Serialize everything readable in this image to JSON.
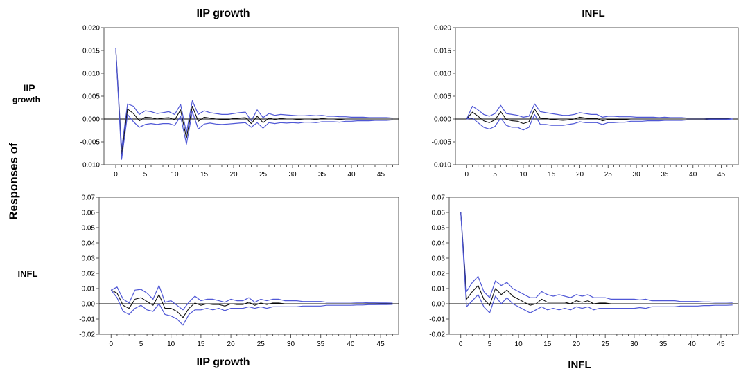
{
  "labels": {
    "col_titles": [
      "IIP growth",
      "INFL"
    ],
    "row_labels": [
      [
        "IIP",
        "growth"
      ],
      [
        "INFL"
      ]
    ],
    "y_title": "Responses of",
    "bottom_labels": [
      "IIP growth",
      "INFL"
    ]
  },
  "colors": {
    "band": "#4f57d6",
    "center": "#111111",
    "zero": "#000000",
    "frame": "#555555"
  },
  "chart_data": [
    {
      "type": "line",
      "row": "IIP growth",
      "column": "IIP growth",
      "ylim": [
        -0.01,
        0.02
      ],
      "yticks": [
        -0.01,
        -0.005,
        0.0,
        0.005,
        0.01,
        0.015,
        0.02
      ],
      "ytick_labels": [
        "-0.010",
        "-0.005",
        "0.000",
        "0.005",
        "0.010",
        "0.015",
        "0.020"
      ],
      "xlim": [
        -2,
        48
      ],
      "xticks": [
        0,
        5,
        10,
        15,
        20,
        25,
        30,
        35,
        40,
        45
      ],
      "ytick_side": "left",
      "x": [
        0,
        1,
        2,
        3,
        4,
        5,
        6,
        7,
        8,
        9,
        10,
        11,
        12,
        13,
        14,
        15,
        16,
        17,
        18,
        19,
        20,
        21,
        22,
        23,
        24,
        25,
        26,
        27,
        28,
        29,
        30,
        31,
        32,
        33,
        34,
        35,
        36,
        37,
        38,
        39,
        40,
        41,
        42,
        43,
        44,
        45,
        46,
        47
      ],
      "series": [
        {
          "role": "upper",
          "values": [
            0.0155,
            -0.0065,
            0.0033,
            0.0028,
            0.001,
            0.0018,
            0.0016,
            0.0012,
            0.0014,
            0.0016,
            0.001,
            0.0032,
            -0.003,
            0.004,
            0.001,
            0.0018,
            0.0014,
            0.0012,
            0.001,
            0.001,
            0.0012,
            0.0014,
            0.0015,
            -0.0004,
            0.002,
            0.0003,
            0.0012,
            0.0008,
            0.001,
            0.0009,
            0.0008,
            0.0007,
            0.0007,
            0.0008,
            0.0007,
            0.0008,
            0.0006,
            0.0006,
            0.0005,
            0.0005,
            0.0004,
            0.0004,
            0.0004,
            0.0003,
            0.0003,
            0.0003,
            0.0003,
            0.0002
          ]
        },
        {
          "role": "response",
          "values": [
            0.0155,
            -0.0078,
            0.0022,
            0.0012,
            -0.0004,
            0.0004,
            0.0003,
            0.0,
            0.0002,
            0.0003,
            -0.0002,
            0.002,
            -0.0042,
            0.0028,
            -0.0005,
            0.0004,
            0.0002,
            0.0,
            -0.0001,
            -0.0001,
            0.0001,
            0.0002,
            0.0003,
            -0.001,
            0.0006,
            -0.0008,
            0.0002,
            -0.0001,
            0.0001,
            0.0,
            0.0,
            -0.0001,
            0.0,
            0.0,
            -0.0001,
            0.0001,
            0.0,
            0.0,
            -0.0001,
            0.0,
            0.0,
            0.0,
            0.0,
            0.0,
            0.0,
            0.0,
            0.0,
            0.0
          ]
        },
        {
          "role": "lower",
          "values": [
            0.0155,
            -0.0088,
            0.001,
            -0.0006,
            -0.0018,
            -0.0012,
            -0.001,
            -0.0012,
            -0.001,
            -0.001,
            -0.0014,
            0.0006,
            -0.0055,
            0.0016,
            -0.0022,
            -0.0011,
            -0.0009,
            -0.0011,
            -0.0012,
            -0.0011,
            -0.001,
            -0.0009,
            -0.0008,
            -0.0018,
            -0.0008,
            -0.002,
            -0.0008,
            -0.001,
            -0.0008,
            -0.0009,
            -0.0008,
            -0.0009,
            -0.0007,
            -0.0007,
            -0.0008,
            -0.0006,
            -0.0006,
            -0.0006,
            -0.0007,
            -0.0005,
            -0.0005,
            -0.0004,
            -0.0004,
            -0.0004,
            -0.0003,
            -0.0003,
            -0.0003,
            -0.0002
          ]
        }
      ]
    },
    {
      "type": "line",
      "row": "IIP growth",
      "column": "INFL",
      "ylim": [
        -0.01,
        0.02
      ],
      "yticks": [
        -0.01,
        -0.005,
        0.0,
        0.005,
        0.01,
        0.015,
        0.02
      ],
      "ytick_labels": [
        "-0.010",
        "-0.005",
        "0.000",
        "0.005",
        "0.010",
        "0.015",
        "0.020"
      ],
      "xlim": [
        -2,
        48
      ],
      "xticks": [
        0,
        5,
        10,
        15,
        20,
        25,
        30,
        35,
        40,
        45
      ],
      "ytick_side": "left",
      "x": [
        0,
        1,
        2,
        3,
        4,
        5,
        6,
        7,
        8,
        9,
        10,
        11,
        12,
        13,
        14,
        15,
        16,
        17,
        18,
        19,
        20,
        21,
        22,
        23,
        24,
        25,
        26,
        27,
        28,
        29,
        30,
        31,
        32,
        33,
        34,
        35,
        36,
        37,
        38,
        39,
        40,
        41,
        42,
        43,
        44,
        45,
        46,
        47
      ],
      "series": [
        {
          "role": "upper",
          "values": [
            0.0,
            0.0028,
            0.002,
            0.001,
            0.0006,
            0.0012,
            0.003,
            0.0012,
            0.001,
            0.0008,
            0.0004,
            0.0006,
            0.0033,
            0.0016,
            0.0014,
            0.0012,
            0.001,
            0.0008,
            0.0008,
            0.001,
            0.0014,
            0.0012,
            0.001,
            0.001,
            0.0004,
            0.0006,
            0.0006,
            0.0005,
            0.0005,
            0.0005,
            0.0004,
            0.0004,
            0.0004,
            0.0004,
            0.0003,
            0.0004,
            0.0003,
            0.0003,
            0.0003,
            0.0002,
            0.0002,
            0.0002,
            0.0002,
            0.0001,
            0.0001,
            0.0001,
            0.0001,
            0.0
          ]
        },
        {
          "role": "response",
          "values": [
            0.0,
            0.0015,
            0.0006,
            -0.0004,
            -0.0008,
            -0.0002,
            0.0016,
            -0.0001,
            -0.0004,
            -0.0005,
            -0.001,
            -0.0006,
            0.0022,
            0.0002,
            0.0001,
            -0.0001,
            -0.0002,
            -0.0003,
            -0.0002,
            0.0,
            0.0004,
            0.0002,
            0.0001,
            0.0001,
            -0.0004,
            -0.0001,
            -0.0001,
            -0.0001,
            -0.0001,
            0.0,
            0.0,
            0.0,
            0.0,
            0.0,
            0.0,
            0.0,
            0.0,
            0.0,
            0.0,
            0.0,
            0.0,
            0.0,
            0.0,
            0.0,
            0.0,
            0.0,
            0.0,
            0.0
          ]
        },
        {
          "role": "lower",
          "values": [
            0.0,
            0.0002,
            -0.0008,
            -0.0018,
            -0.0022,
            -0.0016,
            0.0002,
            -0.0014,
            -0.0018,
            -0.0018,
            -0.0024,
            -0.0018,
            0.001,
            -0.0012,
            -0.0012,
            -0.0014,
            -0.0014,
            -0.0014,
            -0.0012,
            -0.001,
            -0.0006,
            -0.0008,
            -0.0008,
            -0.0008,
            -0.0012,
            -0.0008,
            -0.0008,
            -0.0007,
            -0.0007,
            -0.0005,
            -0.0005,
            -0.0005,
            -0.0004,
            -0.0004,
            -0.0004,
            -0.0003,
            -0.0003,
            -0.0003,
            -0.0003,
            -0.0002,
            -0.0002,
            -0.0002,
            -0.0002,
            -0.0001,
            -0.0001,
            -0.0001,
            -0.0001,
            0.0
          ]
        }
      ]
    },
    {
      "type": "line",
      "row": "INFL",
      "column": "IIP growth",
      "ylim": [
        -0.02,
        0.07
      ],
      "yticks": [
        -0.02,
        -0.01,
        0.0,
        0.01,
        0.02,
        0.03,
        0.04,
        0.05,
        0.06,
        0.07
      ],
      "ytick_labels": [
        "-0.02",
        "-0.01",
        "0.00",
        "0.01",
        "0.02",
        "0.03",
        "0.04",
        "0.05",
        "0.06",
        "0.07"
      ],
      "xlim": [
        -2,
        48
      ],
      "xticks": [
        0,
        5,
        10,
        15,
        20,
        25,
        30,
        35,
        40,
        45
      ],
      "ytick_side": "left",
      "x": [
        0,
        1,
        2,
        3,
        4,
        5,
        6,
        7,
        8,
        9,
        10,
        11,
        12,
        13,
        14,
        15,
        16,
        17,
        18,
        19,
        20,
        21,
        22,
        23,
        24,
        25,
        26,
        27,
        28,
        29,
        30,
        31,
        32,
        33,
        34,
        35,
        36,
        37,
        38,
        39,
        40,
        41,
        42,
        43,
        44,
        45,
        46,
        47
      ],
      "series": [
        {
          "role": "upper",
          "values": [
            0.009,
            0.011,
            0.003,
            0.0005,
            0.009,
            0.0095,
            0.007,
            0.003,
            0.012,
            0.001,
            0.002,
            -0.001,
            -0.004,
            0.001,
            0.005,
            0.002,
            0.003,
            0.003,
            0.002,
            0.001,
            0.003,
            0.002,
            0.002,
            0.004,
            0.001,
            0.003,
            0.002,
            0.003,
            0.003,
            0.002,
            0.002,
            0.002,
            0.0015,
            0.0015,
            0.0015,
            0.0015,
            0.001,
            0.001,
            0.001,
            0.001,
            0.001,
            0.0008,
            0.0008,
            0.0006,
            0.0006,
            0.0005,
            0.0005,
            0.0004
          ]
        },
        {
          "role": "response",
          "values": [
            0.009,
            0.007,
            -0.001,
            -0.003,
            0.003,
            0.004,
            0.0015,
            -0.001,
            0.006,
            -0.003,
            -0.003,
            -0.005,
            -0.009,
            -0.003,
            0.0005,
            -0.001,
            0.0,
            -0.0005,
            -0.0005,
            -0.0015,
            0.0,
            -0.0005,
            -0.0005,
            0.001,
            -0.001,
            0.0005,
            -0.0005,
            0.0005,
            0.0005,
            0.0,
            0.0,
            0.0,
            0.0,
            0.0,
            0.0,
            0.0,
            0.0,
            0.0,
            0.0,
            0.0,
            0.0,
            0.0,
            0.0,
            0.0,
            0.0,
            0.0,
            0.0,
            0.0
          ]
        },
        {
          "role": "lower",
          "values": [
            0.009,
            0.004,
            -0.005,
            -0.007,
            -0.003,
            -0.001,
            -0.004,
            -0.005,
            0.0,
            -0.007,
            -0.008,
            -0.01,
            -0.014,
            -0.007,
            -0.004,
            -0.004,
            -0.003,
            -0.004,
            -0.003,
            -0.0045,
            -0.003,
            -0.003,
            -0.003,
            -0.002,
            -0.003,
            -0.002,
            -0.003,
            -0.002,
            -0.002,
            -0.002,
            -0.002,
            -0.002,
            -0.0015,
            -0.0015,
            -0.0015,
            -0.0015,
            -0.001,
            -0.001,
            -0.001,
            -0.001,
            -0.001,
            -0.0008,
            -0.0008,
            -0.0006,
            -0.0006,
            -0.0005,
            -0.0005,
            -0.0004
          ]
        }
      ]
    },
    {
      "type": "line",
      "row": "INFL",
      "column": "INFL",
      "ylim": [
        -0.02,
        0.07
      ],
      "yticks": [
        -0.02,
        -0.01,
        0.0,
        0.01,
        0.02,
        0.03,
        0.04,
        0.05,
        0.06,
        0.07
      ],
      "ytick_labels": [
        "-0.02",
        "-0.01",
        "0.00",
        "0.01",
        "0.02",
        "0.03",
        "0.04",
        "0.05",
        "0.06",
        "0.07"
      ],
      "xlim": [
        -2,
        48
      ],
      "xticks": [
        0,
        5,
        10,
        15,
        20,
        25,
        30,
        35,
        40,
        45
      ],
      "ytick_side": "left",
      "x": [
        0,
        1,
        2,
        3,
        4,
        5,
        6,
        7,
        8,
        9,
        10,
        11,
        12,
        13,
        14,
        15,
        16,
        17,
        18,
        19,
        20,
        21,
        22,
        23,
        24,
        25,
        26,
        27,
        28,
        29,
        30,
        31,
        32,
        33,
        34,
        35,
        36,
        37,
        38,
        39,
        40,
        41,
        42,
        43,
        44,
        45,
        46,
        47
      ],
      "series": [
        {
          "role": "upper",
          "values": [
            0.06,
            0.008,
            0.014,
            0.018,
            0.008,
            0.004,
            0.015,
            0.012,
            0.014,
            0.01,
            0.008,
            0.006,
            0.004,
            0.004,
            0.008,
            0.006,
            0.005,
            0.006,
            0.005,
            0.004,
            0.006,
            0.005,
            0.006,
            0.004,
            0.004,
            0.004,
            0.003,
            0.003,
            0.003,
            0.003,
            0.003,
            0.0025,
            0.003,
            0.002,
            0.002,
            0.002,
            0.002,
            0.002,
            0.0015,
            0.0015,
            0.0015,
            0.0015,
            0.0012,
            0.0012,
            0.001,
            0.001,
            0.001,
            0.0008
          ]
        },
        {
          "role": "response",
          "values": [
            0.06,
            0.003,
            0.008,
            0.012,
            0.003,
            -0.001,
            0.01,
            0.006,
            0.009,
            0.005,
            0.003,
            0.001,
            -0.001,
            0.0,
            0.003,
            0.001,
            0.001,
            0.001,
            0.001,
            0.0,
            0.002,
            0.001,
            0.002,
            0.0,
            0.0005,
            0.0005,
            0.0,
            0.0,
            0.0,
            0.0,
            0.0,
            0.0,
            0.0,
            0.0,
            0.0,
            0.0,
            0.0,
            0.0,
            0.0,
            0.0,
            0.0,
            0.0,
            0.0,
            0.0,
            0.0,
            0.0,
            0.0,
            0.0
          ]
        },
        {
          "role": "lower",
          "values": [
            0.06,
            -0.002,
            0.002,
            0.006,
            -0.002,
            -0.006,
            0.005,
            0.0,
            0.004,
            0.0,
            -0.002,
            -0.004,
            -0.006,
            -0.004,
            -0.002,
            -0.004,
            -0.003,
            -0.004,
            -0.003,
            -0.004,
            -0.002,
            -0.003,
            -0.002,
            -0.004,
            -0.003,
            -0.003,
            -0.003,
            -0.003,
            -0.003,
            -0.003,
            -0.003,
            -0.0025,
            -0.003,
            -0.002,
            -0.002,
            -0.002,
            -0.002,
            -0.002,
            -0.0015,
            -0.0015,
            -0.0015,
            -0.0015,
            -0.0012,
            -0.0012,
            -0.001,
            -0.001,
            -0.001,
            -0.0008
          ]
        }
      ]
    }
  ]
}
